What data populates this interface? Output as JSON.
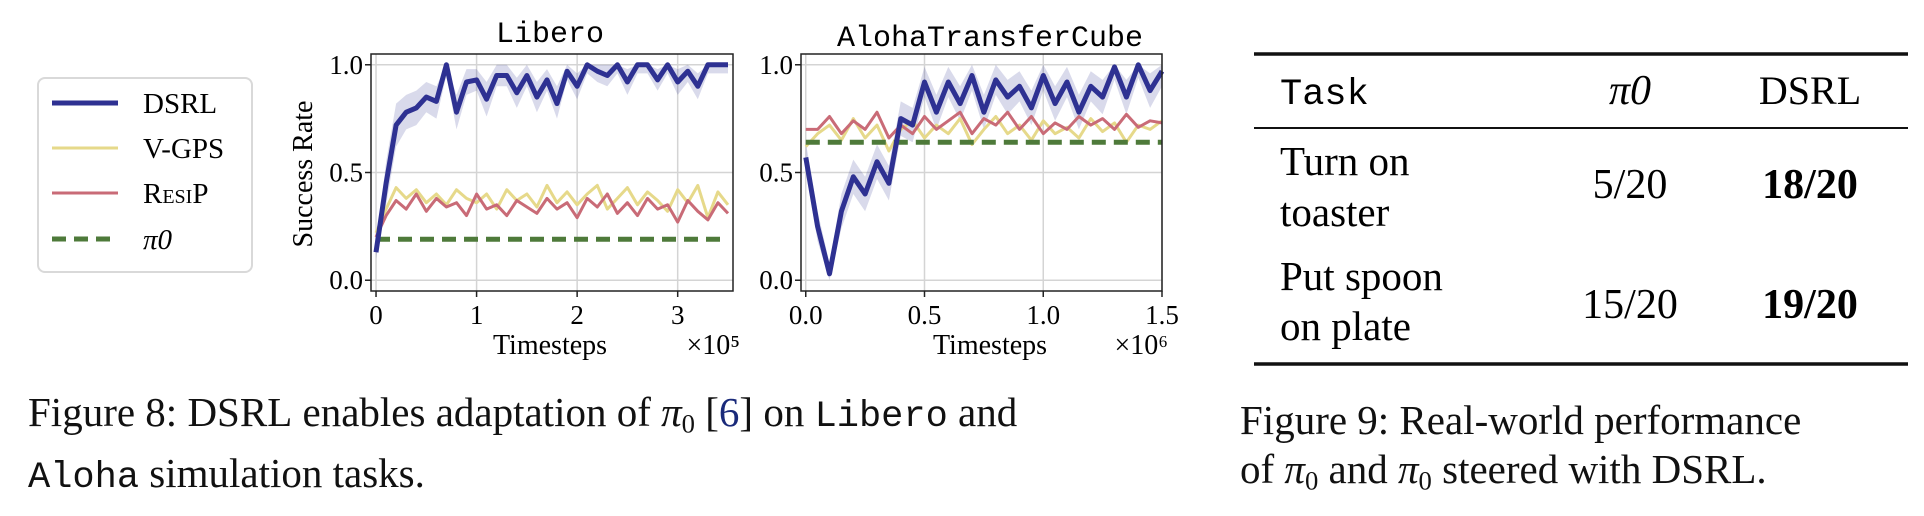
{
  "chart_data": [
    {
      "type": "line",
      "title": "Libero",
      "xlabel": "Timesteps",
      "ylabel": "Success Rate",
      "x_multiplier": "×10⁵",
      "xlim": [
        -0.05,
        3.55
      ],
      "ylim": [
        -0.05,
        1.05
      ],
      "xticks": [
        0,
        1,
        2,
        3
      ],
      "xtick_labels": [
        "0",
        "1",
        "2",
        "3"
      ],
      "yticks": [
        0.0,
        0.5,
        1.0
      ],
      "ytick_labels": [
        "0.0",
        "0.5",
        "1.0"
      ],
      "grid": true,
      "x": [
        0,
        0.1,
        0.2,
        0.3,
        0.4,
        0.5,
        0.6,
        0.7,
        0.8,
        0.9,
        1.0,
        1.1,
        1.2,
        1.3,
        1.4,
        1.5,
        1.6,
        1.7,
        1.8,
        1.9,
        2.0,
        2.1,
        2.2,
        2.3,
        2.4,
        2.5,
        2.6,
        2.7,
        2.8,
        2.9,
        3.0,
        3.1,
        3.2,
        3.3,
        3.4,
        3.5
      ],
      "series": [
        {
          "name": "DSRL",
          "color": "#2e3192",
          "style": "solid",
          "width": 5,
          "values": [
            0.13,
            0.45,
            0.72,
            0.78,
            0.8,
            0.85,
            0.83,
            1.0,
            0.78,
            0.92,
            0.93,
            0.84,
            0.95,
            0.95,
            0.87,
            0.95,
            0.85,
            0.93,
            0.82,
            0.97,
            0.9,
            1.0,
            0.97,
            0.95,
            1.0,
            0.92,
            1.0,
            1.0,
            0.93,
            1.0,
            0.92,
            0.97,
            0.9,
            1.0,
            1.0,
            1.0
          ],
          "band_lo": [
            0.1,
            0.35,
            0.62,
            0.7,
            0.72,
            0.78,
            0.75,
            0.95,
            0.7,
            0.86,
            0.88,
            0.76,
            0.9,
            0.9,
            0.8,
            0.9,
            0.78,
            0.88,
            0.75,
            0.93,
            0.84,
            0.96,
            0.92,
            0.9,
            0.96,
            0.86,
            0.96,
            0.96,
            0.88,
            0.96,
            0.86,
            0.92,
            0.84,
            0.96,
            0.96,
            0.96
          ],
          "band_hi": [
            0.16,
            0.55,
            0.82,
            0.86,
            0.88,
            0.92,
            0.9,
            1.0,
            0.86,
            0.98,
            0.98,
            0.92,
            1.0,
            1.0,
            0.94,
            1.0,
            0.92,
            0.98,
            0.9,
            1.0,
            0.96,
            1.0,
            1.0,
            1.0,
            1.0,
            0.98,
            1.0,
            1.0,
            0.98,
            1.0,
            0.98,
            1.0,
            0.96,
            1.0,
            1.0,
            1.0
          ]
        },
        {
          "name": "V-GPS",
          "color": "#e6d98a",
          "style": "solid",
          "width": 3,
          "values": [
            0.22,
            0.33,
            0.43,
            0.38,
            0.42,
            0.36,
            0.4,
            0.35,
            0.42,
            0.38,
            0.36,
            0.4,
            0.33,
            0.42,
            0.37,
            0.4,
            0.34,
            0.44,
            0.36,
            0.41,
            0.35,
            0.4,
            0.44,
            0.33,
            0.38,
            0.43,
            0.35,
            0.41,
            0.37,
            0.32,
            0.42,
            0.36,
            0.44,
            0.29,
            0.41,
            0.35
          ]
        },
        {
          "name": "ResiP",
          "color": "#c96b77",
          "style": "solid",
          "width": 3,
          "values": [
            0.2,
            0.3,
            0.37,
            0.33,
            0.4,
            0.32,
            0.38,
            0.34,
            0.36,
            0.3,
            0.4,
            0.33,
            0.35,
            0.3,
            0.37,
            0.34,
            0.31,
            0.38,
            0.33,
            0.36,
            0.29,
            0.38,
            0.34,
            0.4,
            0.31,
            0.36,
            0.3,
            0.38,
            0.33,
            0.35,
            0.27,
            0.37,
            0.32,
            0.28,
            0.36,
            0.31
          ]
        },
        {
          "name": "π0",
          "color": "#4e7a3a",
          "style": "dashed",
          "width": 5,
          "values": [
            0.19,
            0.19,
            0.19,
            0.19,
            0.19,
            0.19,
            0.19,
            0.19,
            0.19,
            0.19,
            0.19,
            0.19,
            0.19,
            0.19,
            0.19,
            0.19,
            0.19,
            0.19,
            0.19,
            0.19,
            0.19,
            0.19,
            0.19,
            0.19,
            0.19,
            0.19,
            0.19,
            0.19,
            0.19,
            0.19,
            0.19,
            0.19,
            0.19,
            0.19,
            0.19,
            0.19
          ]
        }
      ]
    },
    {
      "type": "line",
      "title": "AlohaTransferCube",
      "xlabel": "Timesteps",
      "ylabel": "",
      "x_multiplier": "×10⁶",
      "xlim": [
        -0.02,
        1.5
      ],
      "ylim": [
        -0.05,
        1.05
      ],
      "xticks": [
        0.0,
        0.5,
        1.0,
        1.5
      ],
      "xtick_labels": [
        "0.0",
        "0.5",
        "1.0",
        "1.5"
      ],
      "yticks": [
        0.0,
        0.5,
        1.0
      ],
      "ytick_labels": [
        "0.0",
        "0.5",
        "1.0"
      ],
      "grid": true,
      "x": [
        0,
        0.05,
        0.1,
        0.15,
        0.2,
        0.25,
        0.3,
        0.35,
        0.4,
        0.45,
        0.5,
        0.55,
        0.6,
        0.65,
        0.7,
        0.75,
        0.8,
        0.85,
        0.9,
        0.95,
        1.0,
        1.05,
        1.1,
        1.15,
        1.2,
        1.25,
        1.3,
        1.35,
        1.4,
        1.45,
        1.5
      ],
      "series": [
        {
          "name": "DSRL",
          "color": "#2e3192",
          "style": "solid",
          "width": 5,
          "values": [
            0.57,
            0.25,
            0.03,
            0.32,
            0.48,
            0.4,
            0.55,
            0.45,
            0.75,
            0.72,
            0.92,
            0.78,
            0.92,
            0.82,
            0.95,
            0.78,
            0.93,
            0.85,
            0.9,
            0.8,
            0.95,
            0.82,
            0.92,
            0.78,
            0.9,
            0.85,
            0.99,
            0.85,
            1.0,
            0.88,
            0.97
          ],
          "band_lo": [
            0.5,
            0.18,
            0.0,
            0.24,
            0.4,
            0.32,
            0.47,
            0.37,
            0.67,
            0.64,
            0.85,
            0.7,
            0.85,
            0.74,
            0.88,
            0.7,
            0.86,
            0.77,
            0.83,
            0.72,
            0.88,
            0.74,
            0.85,
            0.7,
            0.83,
            0.77,
            0.93,
            0.77,
            0.94,
            0.8,
            0.9
          ],
          "band_hi": [
            0.64,
            0.32,
            0.08,
            0.4,
            0.56,
            0.48,
            0.63,
            0.53,
            0.83,
            0.8,
            0.99,
            0.86,
            0.99,
            0.9,
            1.0,
            0.86,
            1.0,
            0.93,
            0.97,
            0.88,
            1.0,
            0.9,
            0.99,
            0.86,
            0.97,
            0.93,
            1.0,
            0.93,
            1.0,
            0.96,
            1.0
          ]
        },
        {
          "name": "V-GPS",
          "color": "#e6d98a",
          "style": "solid",
          "width": 3,
          "values": [
            0.62,
            0.68,
            0.72,
            0.65,
            0.75,
            0.66,
            0.72,
            0.6,
            0.7,
            0.74,
            0.66,
            0.72,
            0.68,
            0.75,
            0.63,
            0.7,
            0.76,
            0.68,
            0.72,
            0.65,
            0.74,
            0.68,
            0.71,
            0.66,
            0.75,
            0.69,
            0.73,
            0.64,
            0.72,
            0.7,
            0.74
          ]
        },
        {
          "name": "ResiP",
          "color": "#c96b77",
          "style": "solid",
          "width": 3,
          "values": [
            0.7,
            0.7,
            0.76,
            0.68,
            0.74,
            0.7,
            0.78,
            0.66,
            0.72,
            0.68,
            0.76,
            0.7,
            0.74,
            0.78,
            0.68,
            0.75,
            0.72,
            0.78,
            0.7,
            0.76,
            0.68,
            0.73,
            0.7,
            0.76,
            0.72,
            0.75,
            0.7,
            0.77,
            0.71,
            0.74,
            0.73
          ]
        },
        {
          "name": "π0",
          "color": "#4e7a3a",
          "style": "dashed",
          "width": 5,
          "values": [
            0.64,
            0.64,
            0.64,
            0.64,
            0.64,
            0.64,
            0.64,
            0.64,
            0.64,
            0.64,
            0.64,
            0.64,
            0.64,
            0.64,
            0.64,
            0.64,
            0.64,
            0.64,
            0.64,
            0.64,
            0.64,
            0.64,
            0.64,
            0.64,
            0.64,
            0.64,
            0.64,
            0.64,
            0.64,
            0.64,
            0.64
          ]
        }
      ]
    },
    {
      "type": "table",
      "columns": [
        "Task",
        "π0",
        "DSRL"
      ],
      "rows": [
        {
          "task": [
            "Turn on",
            "toaster"
          ],
          "pi0": "5/20",
          "dsrl": "18/20"
        },
        {
          "task": [
            "Put spoon",
            "on plate"
          ],
          "pi0": "15/20",
          "dsrl": "19/20"
        }
      ]
    }
  ],
  "legend": {
    "entries": [
      {
        "label": "DSRL",
        "color": "#2e3192",
        "style": "solid"
      },
      {
        "label": "V-GPS",
        "color": "#e6d98a",
        "style": "solid"
      },
      {
        "label": "ResiP",
        "color": "#c96b77",
        "style": "solid"
      },
      {
        "label": "π0",
        "color": "#4e7a3a",
        "style": "dashed"
      }
    ]
  },
  "captions": {
    "fig8": {
      "label": "Figure 8:",
      "part1": "DSRL",
      "part2": "enables adaptation of",
      "pi": "π",
      "sub": "0",
      "cite_open": "[",
      "cite": "6",
      "cite_close": "]",
      "part3": "on",
      "mono1": "Libero",
      "part4": "and",
      "mono2": "Aloha",
      "part5": "simulation tasks."
    },
    "fig9": {
      "label": "Figure 9:",
      "line1": "Real-world performance",
      "of": "of",
      "pi": "π",
      "sub": "0",
      "and": "and",
      "steered": "steered with",
      "dsrl": "DSRL",
      "period": "."
    }
  }
}
